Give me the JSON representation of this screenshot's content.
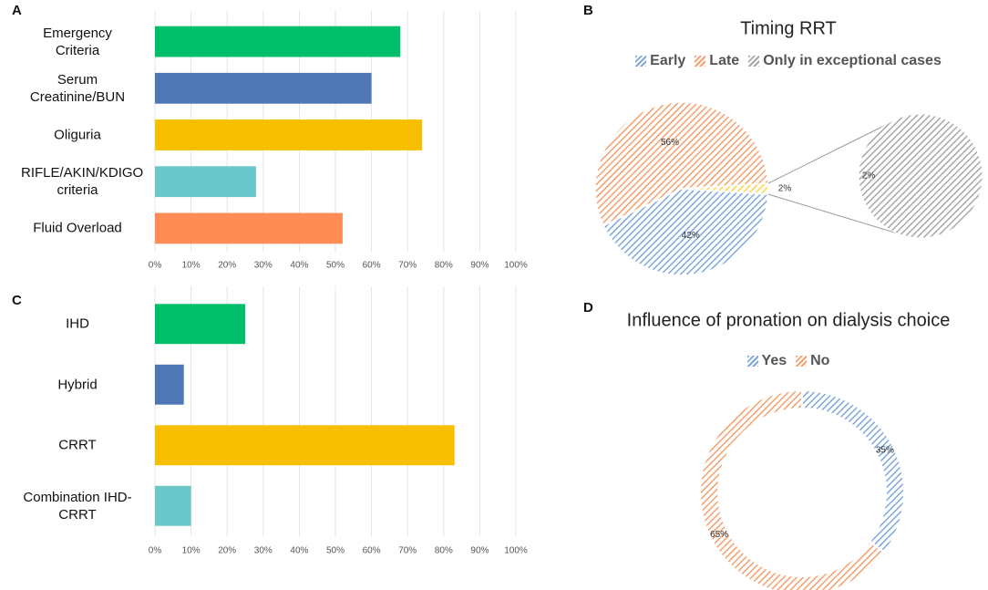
{
  "chart_data": [
    {
      "panel": "A",
      "type": "bar",
      "orientation": "horizontal",
      "categories": [
        "Emergency Criteria",
        "Serum Creatinine/BUN",
        "Oliguria",
        "RIFLE/AKIN/KDIGO criteria",
        "Fluid Overload"
      ],
      "values": [
        68,
        60,
        74,
        28,
        52
      ],
      "colors": [
        "#00bf6b",
        "#4d78b5",
        "#f8bf00",
        "#6ac8cb",
        "#ff8c55"
      ],
      "xlim": [
        0,
        100
      ],
      "xticks": [
        {
          "value": 0,
          "label": "0%"
        },
        {
          "value": 10,
          "label": "10%"
        },
        {
          "value": 20,
          "label": "20%"
        },
        {
          "value": 30,
          "label": "30%"
        },
        {
          "value": 40,
          "label": "40%"
        },
        {
          "value": 50,
          "label": "50%"
        },
        {
          "value": 60,
          "label": "60%"
        },
        {
          "value": 70,
          "label": "70%"
        },
        {
          "value": 80,
          "label": "80%"
        },
        {
          "value": 90,
          "label": "90%"
        },
        {
          "value": 100,
          "label": "100%"
        }
      ],
      "grid": true
    },
    {
      "panel": "B",
      "type": "pie",
      "title": "Timing RRT",
      "categories": [
        "Early",
        "Late",
        "Only in exceptional cases"
      ],
      "values": [
        42,
        56,
        2
      ],
      "value_labels": [
        "42%",
        "56%",
        "2%"
      ],
      "colors": [
        "#7ea8dc",
        "#f4a06e",
        "#a8a8a8"
      ],
      "hatch": true,
      "legend": "top",
      "highlight_color": "#ffd54a",
      "secondary": {
        "values": [
          2
        ],
        "value_labels": [
          "2%"
        ]
      }
    },
    {
      "panel": "C",
      "type": "bar",
      "orientation": "horizontal",
      "categories": [
        "IHD",
        "Hybrid",
        "CRRT",
        "Combination IHD-CRRT"
      ],
      "values": [
        25,
        8,
        83,
        10
      ],
      "colors": [
        "#00bf6b",
        "#4d78b5",
        "#f8bf00",
        "#6ac8cb"
      ],
      "xlim": [
        0,
        100
      ],
      "xticks": [
        {
          "value": 0,
          "label": "0%"
        },
        {
          "value": 10,
          "label": "10%"
        },
        {
          "value": 20,
          "label": "20%"
        },
        {
          "value": 30,
          "label": "30%"
        },
        {
          "value": 40,
          "label": "40%"
        },
        {
          "value": 50,
          "label": "50%"
        },
        {
          "value": 60,
          "label": "60%"
        },
        {
          "value": 70,
          "label": "70%"
        },
        {
          "value": 80,
          "label": "80%"
        },
        {
          "value": 90,
          "label": "90%"
        },
        {
          "value": 100,
          "label": "100%"
        }
      ],
      "grid": true
    },
    {
      "panel": "D",
      "type": "donut",
      "title": "Influence of pronation on dialysis choice",
      "categories": [
        "Yes",
        "No"
      ],
      "values": [
        35,
        65
      ],
      "value_labels": [
        "35%",
        "65%"
      ],
      "colors": [
        "#7ea8dc",
        "#f4a06e"
      ],
      "hatch": true,
      "legend": "top"
    }
  ]
}
